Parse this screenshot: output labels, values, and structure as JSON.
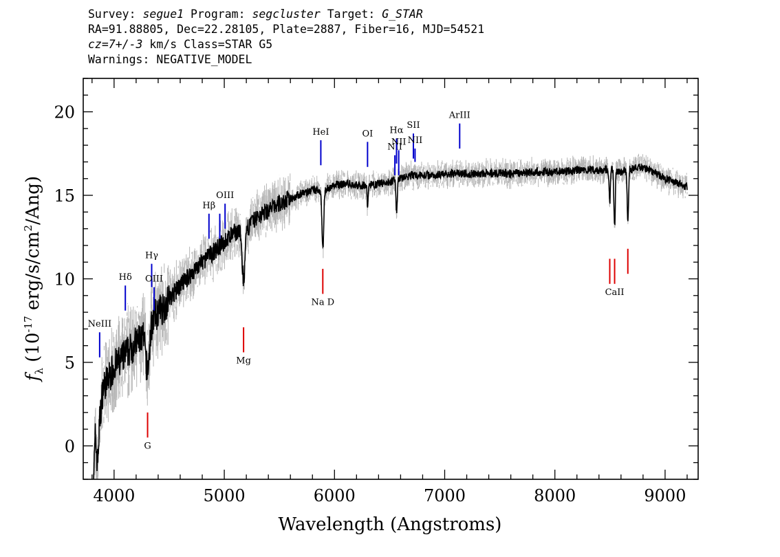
{
  "header": {
    "line1": {
      "survey_key": "Survey: ",
      "survey": "segue1",
      "program_key": " Program: ",
      "program": "segcluster",
      "target_key": " Target: ",
      "target": "G_STAR"
    },
    "line2": "RA=91.88805, Dec=22.28105, Plate=2887, Fiber=16, MJD=54521",
    "line3": {
      "cz": "cz=7+/-3",
      "rest": " km/s Class=STAR G5"
    },
    "line4": "Warnings: NEGATIVE_MODEL"
  },
  "chart_data": {
    "type": "line",
    "xlabel": "Wavelength (Angstroms)",
    "ylabel": {
      "f": "f",
      "sub": "λ",
      "pre": " (10",
      "exp": "-17",
      "mid": " erg/s/cm",
      "exp2": "2",
      "post": "/Ang)"
    },
    "xlim": [
      3720,
      9300
    ],
    "ylim": [
      -2,
      22
    ],
    "xticks": [
      4000,
      5000,
      6000,
      7000,
      8000,
      9000
    ],
    "yticks": [
      0,
      5,
      10,
      15,
      20
    ],
    "grid": false,
    "series": [
      {
        "style": "black thick line (smoothed spectrum) over grey noisy flux",
        "x": [
          3810,
          3830,
          3850,
          3870,
          3900,
          3950,
          4000,
          4050,
          4100,
          4150,
          4200,
          4250,
          4300,
          4350,
          4400,
          4450,
          4500,
          4600,
          4700,
          4800,
          4900,
          5000,
          5100,
          5200,
          5300,
          5400,
          5500,
          5600,
          5700,
          5800,
          5900,
          6000,
          6100,
          6200,
          6300,
          6400,
          6500,
          6600,
          6700,
          6800,
          6900,
          7000,
          7200,
          7400,
          7600,
          7800,
          8000,
          8200,
          8400,
          8500,
          8600,
          8700,
          8800,
          8900,
          9000,
          9100,
          9200
        ],
        "y": [
          -2.5,
          0.5,
          -1,
          1.5,
          3.5,
          4.0,
          4.8,
          5.0,
          5.5,
          5.8,
          6.2,
          6.5,
          7.0,
          7.6,
          8.0,
          8.3,
          8.8,
          9.6,
          10.3,
          11.0,
          11.6,
          12.2,
          12.8,
          13.0,
          13.7,
          14.1,
          14.5,
          14.8,
          15.1,
          15.3,
          15.3,
          15.6,
          15.7,
          15.6,
          15.6,
          15.7,
          15.8,
          16.0,
          16.2,
          16.2,
          16.2,
          16.3,
          16.3,
          16.3,
          16.3,
          16.4,
          16.4,
          16.5,
          16.5,
          16.6,
          16.4,
          16.6,
          16.7,
          16.4,
          16.0,
          15.8,
          15.5
        ]
      }
    ],
    "emission_lines": [
      {
        "label": "NeIII",
        "x": 3869,
        "y0": 5.3,
        "y1": 6.8
      },
      {
        "label": "Hδ",
        "x": 4102,
        "y0": 8.1,
        "y1": 9.6
      },
      {
        "label": "Hγ",
        "x": 4341,
        "y0": 9.5,
        "y1": 10.9
      },
      {
        "label": "OIII",
        "x": 4363,
        "y0": 8.1,
        "y1": 9.5
      },
      {
        "label": "Hβ",
        "x": 4861,
        "y0": 12.4,
        "y1": 13.9
      },
      {
        "label": "",
        "x": 4959,
        "y0": 12.4,
        "y1": 13.9
      },
      {
        "label": "OIII",
        "x": 5007,
        "y0": 13.0,
        "y1": 14.5
      },
      {
        "label": "HeI",
        "x": 5876,
        "y0": 16.8,
        "y1": 18.3
      },
      {
        "label": "OI",
        "x": 6300,
        "y0": 16.7,
        "y1": 18.2
      },
      {
        "label": "NII",
        "x": 6548,
        "y0": 16.2,
        "y1": 17.4
      },
      {
        "label": "Hα",
        "x": 6563,
        "y0": 16.9,
        "y1": 18.4
      },
      {
        "label": "NII",
        "x": 6583,
        "y0": 16.2,
        "y1": 17.7
      },
      {
        "label": "SII",
        "x": 6716,
        "y0": 17.2,
        "y1": 18.7
      },
      {
        "label": "NII",
        "x": 6731,
        "y0": 17.0,
        "y1": 17.8
      },
      {
        "label": "ArIII",
        "x": 7136,
        "y0": 17.8,
        "y1": 19.3
      }
    ],
    "absorption_lines": [
      {
        "label": "G",
        "x": 4304,
        "y0": 0.5,
        "y1": 2.0
      },
      {
        "label": "Mg",
        "x": 5175,
        "y0": 5.6,
        "y1": 7.1
      },
      {
        "label": "Na D",
        "x": 5894,
        "y0": 9.1,
        "y1": 10.6
      },
      {
        "label": "",
        "x": 8498,
        "y0": 9.7,
        "y1": 11.2
      },
      {
        "label": "CaII",
        "x": 8542,
        "y0": 9.7,
        "y1": 11.2
      },
      {
        "label": "",
        "x": 8662,
        "y0": 10.3,
        "y1": 11.8
      }
    ]
  }
}
